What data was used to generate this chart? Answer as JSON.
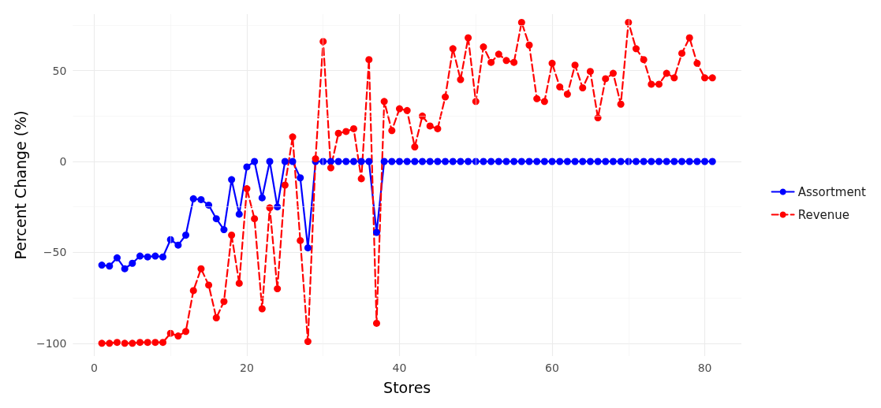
{
  "chart_data": {
    "type": "line",
    "xlabel": "Stores",
    "ylabel": "Percent Change (%)",
    "x": [
      1,
      2,
      3,
      4,
      5,
      6,
      7,
      8,
      9,
      10,
      11,
      12,
      13,
      14,
      15,
      16,
      17,
      18,
      19,
      20,
      21,
      22,
      23,
      24,
      25,
      26,
      27,
      28,
      29,
      30,
      31,
      32,
      33,
      34,
      35,
      36,
      37,
      38,
      39,
      40,
      41,
      42,
      43,
      44,
      45,
      46,
      47,
      48,
      49,
      50,
      51,
      52,
      53,
      54,
      55,
      56,
      57,
      58,
      59,
      60,
      61,
      62,
      63,
      64,
      65,
      66,
      67,
      68,
      69,
      70,
      71,
      72,
      73,
      74,
      75,
      76,
      77,
      78,
      79,
      80,
      81
    ],
    "series": [
      {
        "name": "Assortment",
        "color": "#0000ff",
        "line_style": "solid",
        "values": [
          -57,
          -57.5,
          -53,
          -59,
          -56,
          -52,
          -52.5,
          -52,
          -52.5,
          -43,
          -46,
          -40.5,
          -20.5,
          -21,
          -24,
          -31.5,
          -37.5,
          -10,
          -29,
          -3,
          0,
          -20,
          0,
          -25,
          0,
          0,
          -9,
          -47.5,
          0,
          0,
          0,
          0,
          0,
          0,
          0,
          0,
          -39,
          0,
          0,
          0,
          0,
          0,
          0,
          0,
          0,
          0,
          0,
          0,
          0,
          0,
          0,
          0,
          0,
          0,
          0,
          0,
          0,
          0,
          0,
          0,
          0,
          0,
          0,
          0,
          0,
          0,
          0,
          0,
          0,
          0,
          0,
          0,
          0,
          0,
          0,
          0,
          0,
          0,
          0,
          0,
          0
        ]
      },
      {
        "name": "Revenue",
        "color": "#ff0000",
        "line_style": "dashed",
        "values": [
          -100,
          -100,
          -99.5,
          -100,
          -100,
          -99.5,
          -99.5,
          -99.5,
          -99.5,
          -94.5,
          -96,
          -93.5,
          -71,
          -59,
          -68,
          -86,
          -77,
          -40.5,
          -67,
          -15,
          -31.5,
          -81,
          -25.5,
          -70,
          -13,
          13.5,
          -43.5,
          -99,
          1.5,
          66,
          -3.5,
          15.5,
          16.5,
          18,
          -9.5,
          56,
          -89,
          33,
          17,
          29,
          28,
          8,
          25,
          19.5,
          18,
          35.5,
          62,
          45,
          68,
          33,
          63,
          54.5,
          59,
          55.5,
          54.5,
          76.5,
          64,
          34.5,
          33,
          54,
          41,
          37,
          53,
          40.5,
          49.5,
          24,
          45.5,
          48.5,
          31.5,
          76.5,
          62,
          56,
          42.5,
          42.5,
          48.5,
          46,
          59.5,
          68,
          54,
          46,
          46
        ]
      }
    ],
    "xlim": [
      -2.8,
      84.8
    ],
    "xticks": [
      0,
      20,
      40,
      60,
      80
    ],
    "ylim": [
      -107,
      81
    ],
    "yticks": [
      -100,
      -50,
      0,
      50
    ],
    "grid": true,
    "legend": "right",
    "marker": "circle"
  }
}
